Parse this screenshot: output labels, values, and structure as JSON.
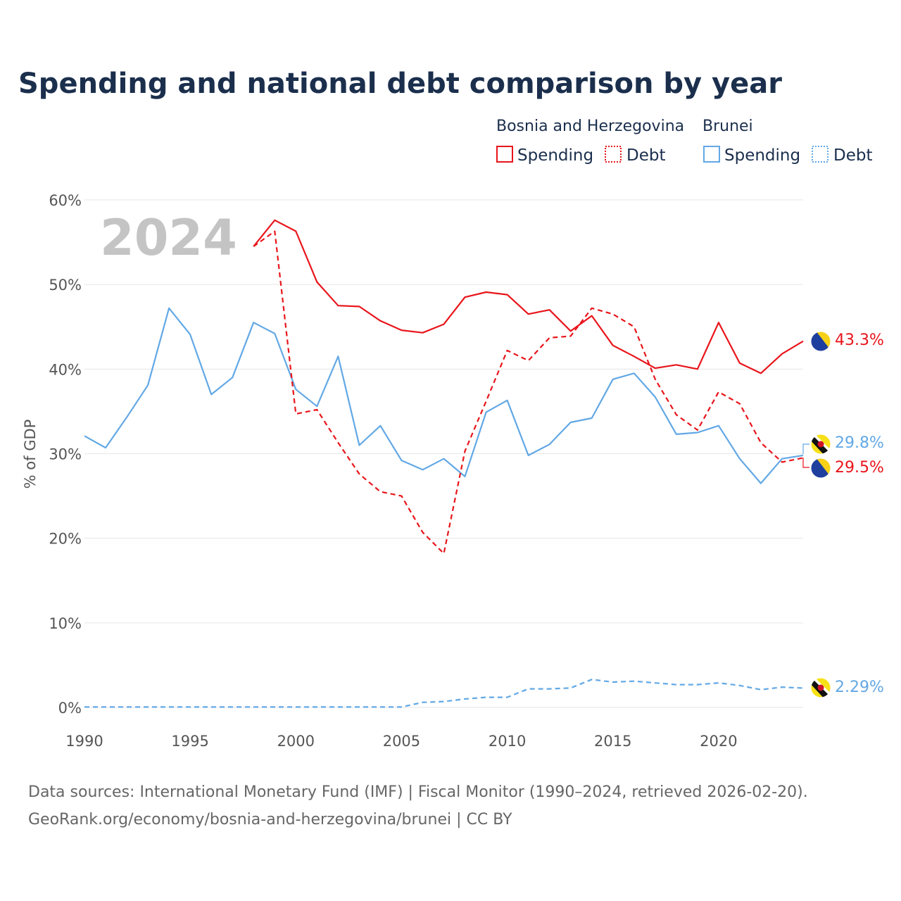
{
  "chart_data": {
    "type": "line",
    "title": "Spending and national debt comparison by year",
    "current_year": "2024",
    "ylabel": "% of GDP",
    "ylim": [
      0,
      60
    ],
    "xlim": [
      1990,
      2024
    ],
    "x_ticks": [
      1990,
      1995,
      2000,
      2005,
      2010,
      2015,
      2020
    ],
    "x_tick_labels": [
      "1990",
      "1995",
      "2000",
      "2005",
      "2010",
      "2015",
      "2020"
    ],
    "y_ticks": [
      0,
      10,
      20,
      30,
      40,
      50,
      60
    ],
    "y_tick_labels": [
      "0%",
      "10%",
      "20%",
      "30%",
      "40%",
      "50%",
      "60%"
    ],
    "legend": {
      "groups": [
        {
          "country": "Bosnia and Herzegovina",
          "color": "#e8151b",
          "items": [
            "Spending",
            "Debt"
          ]
        },
        {
          "country": "Brunei",
          "color": "#62a8e5",
          "items": [
            "Spending",
            "Debt"
          ]
        }
      ]
    },
    "series": [
      {
        "name": "Bosnia and Herzegovina Spending",
        "country": "Bosnia and Herzegovina",
        "metric": "Spending",
        "color": "#e8151b",
        "dashed": false,
        "end_label": "43.3%",
        "x": [
          1998,
          1999,
          2000,
          2001,
          2002,
          2003,
          2004,
          2005,
          2006,
          2007,
          2008,
          2009,
          2010,
          2011,
          2012,
          2013,
          2014,
          2015,
          2016,
          2017,
          2018,
          2019,
          2020,
          2021,
          2022,
          2023,
          2024
        ],
        "values": [
          54.5,
          57.6,
          56.3,
          50.3,
          47.5,
          47.4,
          45.7,
          44.6,
          44.3,
          45.3,
          48.5,
          49.1,
          48.8,
          46.5,
          47.0,
          44.5,
          46.3,
          42.8,
          41.5,
          40.1,
          40.5,
          40.0,
          45.5,
          40.7,
          39.5,
          41.8,
          43.3
        ]
      },
      {
        "name": "Bosnia and Herzegovina Debt",
        "country": "Bosnia and Herzegovina",
        "metric": "Debt",
        "color": "#e8151b",
        "dashed": true,
        "end_label": "29.5%",
        "x": [
          1998,
          1999,
          2000,
          2001,
          2002,
          2003,
          2004,
          2005,
          2006,
          2007,
          2008,
          2009,
          2010,
          2011,
          2012,
          2013,
          2014,
          2015,
          2016,
          2017,
          2018,
          2019,
          2020,
          2021,
          2022,
          2023,
          2024
        ],
        "values": [
          54.5,
          56.3,
          34.7,
          35.2,
          31.3,
          27.6,
          25.5,
          25.0,
          20.7,
          18.2,
          30.3,
          36.2,
          42.2,
          41.0,
          43.7,
          43.9,
          47.2,
          46.5,
          45.0,
          38.8,
          34.6,
          32.8,
          37.3,
          35.9,
          31.3,
          29.0,
          29.5
        ]
      },
      {
        "name": "Brunei Spending",
        "country": "Brunei",
        "metric": "Spending",
        "color": "#62a8e5",
        "dashed": false,
        "end_label": "29.8%",
        "x": [
          1990,
          1991,
          1992,
          1993,
          1994,
          1995,
          1996,
          1997,
          1998,
          1999,
          2000,
          2001,
          2002,
          2003,
          2004,
          2005,
          2006,
          2007,
          2008,
          2009,
          2010,
          2011,
          2012,
          2013,
          2014,
          2015,
          2016,
          2017,
          2018,
          2019,
          2020,
          2021,
          2022,
          2023,
          2024
        ],
        "values": [
          32.1,
          30.7,
          34.3,
          38.1,
          47.2,
          44.1,
          37.0,
          39.0,
          45.5,
          44.2,
          37.6,
          35.6,
          41.5,
          31.0,
          33.3,
          29.2,
          28.1,
          29.4,
          27.3,
          34.9,
          36.3,
          29.8,
          31.1,
          33.7,
          34.2,
          38.8,
          39.5,
          36.7,
          32.3,
          32.5,
          33.3,
          29.4,
          26.5,
          29.4,
          29.8
        ]
      },
      {
        "name": "Brunei Debt",
        "country": "Brunei",
        "metric": "Debt",
        "color": "#62a8e5",
        "dashed": true,
        "end_label": "2.29%",
        "x": [
          1990,
          1991,
          1992,
          1993,
          1994,
          1995,
          1996,
          1997,
          1998,
          1999,
          2000,
          2001,
          2002,
          2003,
          2004,
          2005,
          2006,
          2007,
          2008,
          2009,
          2010,
          2011,
          2012,
          2013,
          2014,
          2015,
          2016,
          2017,
          2018,
          2019,
          2020,
          2021,
          2022,
          2023,
          2024
        ],
        "values": [
          0.05,
          0.05,
          0.05,
          0.05,
          0.05,
          0.05,
          0.05,
          0.05,
          0.05,
          0.05,
          0.05,
          0.05,
          0.05,
          0.05,
          0.05,
          0.05,
          0.6,
          0.7,
          1.0,
          1.2,
          1.2,
          2.2,
          2.2,
          2.3,
          3.3,
          3.0,
          3.1,
          2.9,
          2.7,
          2.7,
          2.9,
          2.6,
          2.1,
          2.4,
          2.29
        ]
      }
    ],
    "source_lines": [
      "Data sources: International Monetary Fund (IMF) | Fiscal Monitor (1990–2024, retrieved 2026-02-20).",
      "GeoRank.org/economy/bosnia-and-herzegovina/brunei | CC BY"
    ]
  }
}
